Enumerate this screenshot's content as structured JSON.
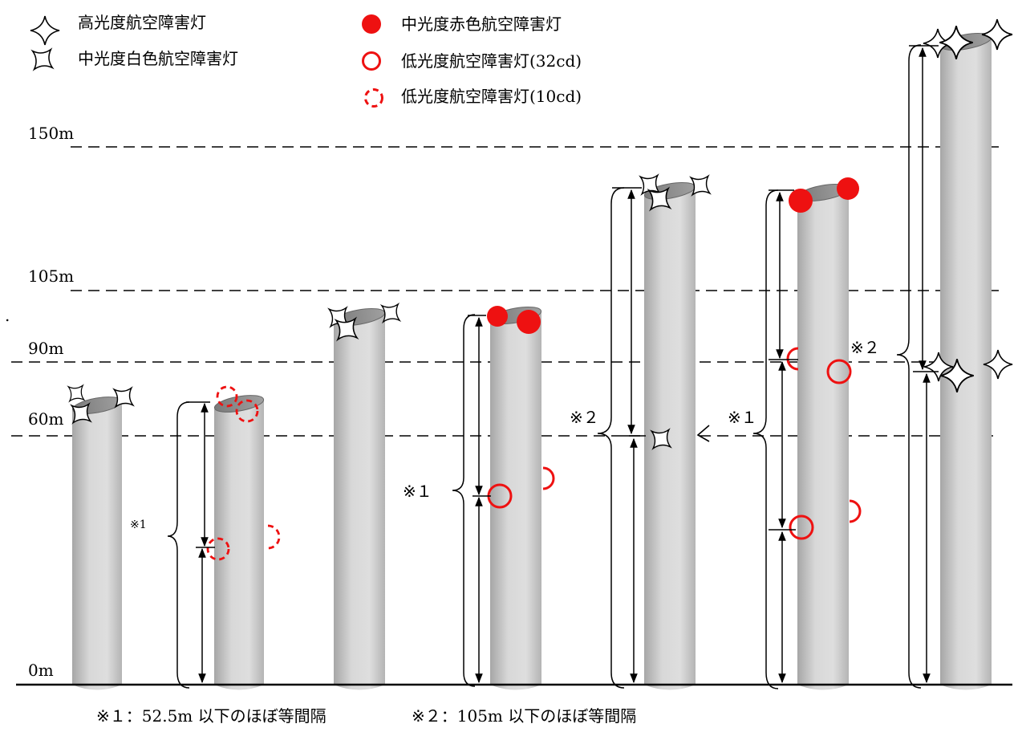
{
  "legend": {
    "high_intensity": "高光度航空障害灯",
    "medium_white": "中光度白色航空障害灯",
    "medium_red": "中光度赤色航空障害灯",
    "low_32cd": "低光度航空障害灯(32cd)",
    "low_10cd": "低光度航空障害灯(10cd)"
  },
  "levels": {
    "l150": "150m",
    "l105": "105m",
    "l90": "90m",
    "l60": "60m",
    "l0": "0m"
  },
  "stray_mark": ".",
  "notes": {
    "small1": "※1",
    "n1a": "※１",
    "n2a": "※２",
    "n1b": "※１",
    "n2b": "※２"
  },
  "footnotes": {
    "f1": "※１：52.5m 以下のほぼ等間隔",
    "f2": "※２：105m 以下のほぼ等間隔"
  },
  "colors": {
    "red": "#ee1111",
    "cylinder_light": "#e6e6e6",
    "cylinder_dark": "#a8a8a8",
    "cap": "#8c8c8c"
  }
}
